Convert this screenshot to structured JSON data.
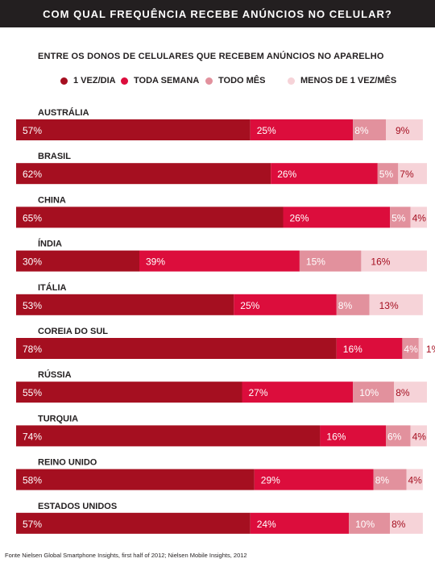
{
  "header": {
    "title": "COM QUAL FREQUÊNCIA RECEBE ANÚNCIOS NO CELULAR?",
    "subtitle": "ENTRE OS DONOS DE CELULARES QUE RECEBEM ANÚNCIOS NO APARELHO"
  },
  "footer": {
    "source": "Fonte Nielsen Global Smartphone Insights, first half of 2012; Nielsen Mobile Insights, 2012"
  },
  "colors": {
    "daily": "#a50f20",
    "weekly": "#dc0d3c",
    "monthly": "#e2919d",
    "less": "#f6d3d8",
    "title_bg": "#231f20"
  },
  "chart_data": {
    "type": "bar",
    "orientation": "horizontal",
    "stacked": true,
    "title": "COM QUAL FREQUÊNCIA RECEBE ANÚNCIOS NO CELULAR?",
    "subtitle": "ENTRE OS DONOS DE CELULARES QUE RECEBEM ANÚNCIOS NO APARELHO",
    "unit": "%",
    "xlim": [
      0,
      100
    ],
    "grid": false,
    "legend_position": "top",
    "categories": [
      "AUSTRÁLIA",
      "BRASIL",
      "CHINA",
      "ÍNDIA",
      "ITÁLIA",
      "COREIA DO SUL",
      "RÚSSIA",
      "TURQUIA",
      "REINO UNIDO",
      "ESTADOS UNIDOS"
    ],
    "series": [
      {
        "name": "1 VEZ/DIA",
        "color": "#a50f20",
        "values": [
          57,
          62,
          65,
          30,
          53,
          78,
          55,
          74,
          58,
          57
        ]
      },
      {
        "name": "TODA SEMANA",
        "color": "#dc0d3c",
        "values": [
          25,
          26,
          26,
          39,
          25,
          16,
          27,
          16,
          29,
          24
        ]
      },
      {
        "name": "TODO MÊS",
        "color": "#e2919d",
        "values": [
          8,
          5,
          5,
          15,
          8,
          4,
          10,
          6,
          8,
          10
        ]
      },
      {
        "name": "MENOS DE 1 VEZ/MÊS",
        "color": "#f6d3d8",
        "values": [
          9,
          7,
          4,
          16,
          13,
          1,
          8,
          4,
          4,
          8
        ]
      }
    ]
  }
}
